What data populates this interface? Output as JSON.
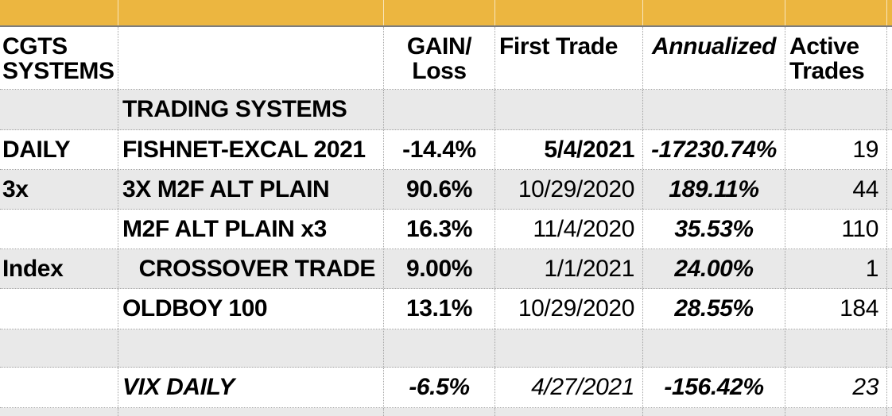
{
  "table": {
    "header": {
      "title_col": "CGTS SYSTEMS",
      "gain_loss": "GAIN/ Loss",
      "first_trade": "First Trade",
      "annualized": "Annualized",
      "active_trades": "Active Trades"
    },
    "rows": [
      {
        "system": "TRADING SYSTEMS"
      },
      {
        "label": "DAILY",
        "system": "FISHNET-EXCAL 2021",
        "gain": "-14.4%",
        "first_trade": "5/4/2021",
        "annualized": "-17230.74%",
        "active": "19"
      },
      {
        "label": "3x",
        "system": "3X M2F ALT PLAIN",
        "gain": "90.6%",
        "first_trade": "10/29/2020",
        "annualized": "189.11%",
        "active": "44"
      },
      {
        "system": "M2F ALT PLAIN x3",
        "gain": "16.3%",
        "first_trade": "11/4/2020",
        "annualized": "35.53%",
        "active": "110"
      },
      {
        "label": "Index",
        "system": "CROSSOVER TRADE",
        "gain": "9.00%",
        "first_trade": "1/1/2021",
        "annualized": "24.00%",
        "active": "1"
      },
      {
        "system": "OLDBOY 100",
        "gain": "13.1%",
        "first_trade": "10/29/2020",
        "annualized": "28.55%",
        "active": "184"
      },
      {},
      {
        "system": "VIX DAILY",
        "gain": "-6.5%",
        "first_trade": "4/27/2021",
        "annualized": "-156.42%",
        "active": "23"
      }
    ]
  },
  "colors": {
    "band_yellow": "#ECB640",
    "stripe_gray": "#E9E9E9",
    "gridline": "#A3A3A3",
    "band_border": "#7D7D7D",
    "text": "#000000"
  }
}
